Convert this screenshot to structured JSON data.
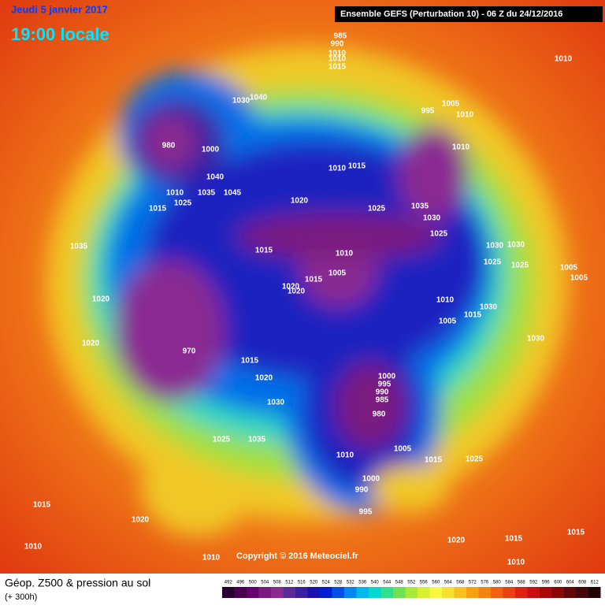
{
  "header": {
    "date": "Jeudi 5 janvier 2017",
    "time": "19:00 locale",
    "model": "Ensemble GEFS  (Perturbation 10)  -  06 Z du 24/12/2016"
  },
  "copyright": "Copyright © 2016 Meteociel.fr",
  "footer": {
    "title": "Géop. Z500 & pression au sol",
    "lead": "(+ 300h)"
  },
  "scale": {
    "labels": [
      492,
      496,
      500,
      504,
      508,
      512,
      516,
      520,
      524,
      528,
      532,
      536,
      540,
      544,
      548,
      552,
      556,
      560,
      564,
      568,
      572,
      576,
      580,
      584,
      588,
      592,
      596,
      600,
      604,
      608,
      612
    ],
    "colors": [
      "#2a0033",
      "#4a0050",
      "#66006e",
      "#7a1a80",
      "#8a2a92",
      "#5a2a9a",
      "#3a20a0",
      "#1a10b0",
      "#0020d0",
      "#0050e8",
      "#0088f0",
      "#00b8f0",
      "#00d8d0",
      "#30e090",
      "#70e050",
      "#a8e838",
      "#d8f030",
      "#f8f840",
      "#f8e030",
      "#f8c020",
      "#f8a010",
      "#f88010",
      "#f06010",
      "#e84010",
      "#e02010",
      "#c81010",
      "#a80808",
      "#880808",
      "#600808",
      "#400808",
      "#200404"
    ]
  },
  "isobar_labels": [
    985,
    990,
    1010,
    1010,
    1015,
    1040,
    1030,
    995,
    1005,
    1010,
    1010,
    980,
    1000,
    1040,
    1035,
    1045,
    1010,
    1025,
    1015,
    1020,
    1015,
    1010,
    1025,
    1035,
    1030,
    1025,
    1010,
    1005,
    1015,
    1035,
    1020,
    1005,
    1010,
    1005,
    1015,
    1020,
    1015,
    1020,
    1020,
    1020,
    970,
    1015,
    1030,
    1030,
    1025,
    1030,
    1030,
    1025,
    1000,
    995,
    990,
    985,
    980,
    1005,
    1010,
    1015,
    1025,
    1025,
    1035,
    1000,
    990,
    995,
    1020,
    1015,
    1015,
    1010,
    1010,
    1010,
    1015,
    1020,
    1030,
    1010,
    1005
  ]
}
